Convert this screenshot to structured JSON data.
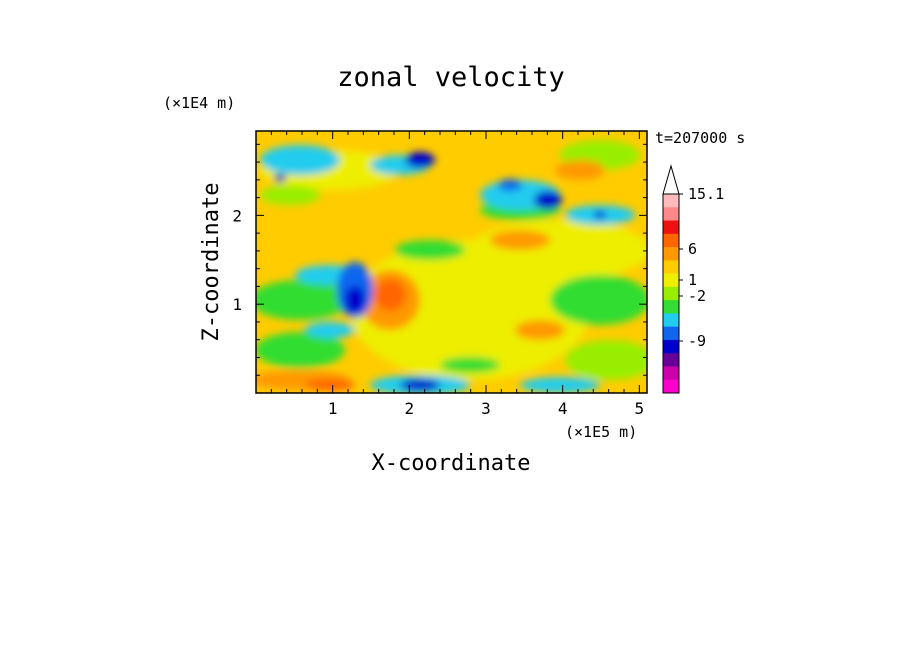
{
  "chart_data": {
    "type": "heatmap",
    "title": "zonal velocity",
    "xlabel": "X-coordinate",
    "ylabel": "Z-coordinate",
    "x_unit": "(×1E5 m)",
    "y_unit": "(×1E4 m)",
    "time_label": "t=207000 s",
    "xlim": [
      0,
      5.1
    ],
    "ylim": [
      0,
      2.95
    ],
    "x_ticks": [
      "1",
      "2",
      "3",
      "4",
      "5"
    ],
    "x_tick_values": [
      1,
      2,
      3,
      4,
      5
    ],
    "y_ticks": [
      "1",
      "2"
    ],
    "y_tick_values": [
      1,
      2
    ],
    "colorbar": {
      "labels": [
        "15.1",
        "6",
        "1",
        "-2",
        "-9"
      ],
      "colors": [
        "#ffbbbb",
        "#ff8888",
        "#ee1111",
        "#ff6600",
        "#ff9900",
        "#ffcc00",
        "#eeee00",
        "#99ee00",
        "#33dd33",
        "#22ccee",
        "#1166ee",
        "#0000cc",
        "#660099",
        "#cc00aa",
        "#ff00cc"
      ],
      "extend_max": true
    },
    "grid": false
  }
}
